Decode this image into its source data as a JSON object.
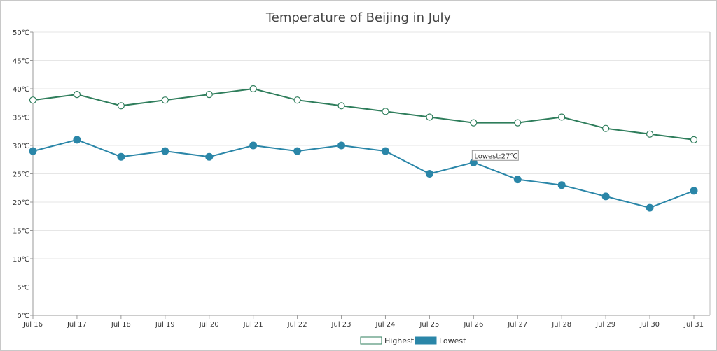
{
  "chart_data": {
    "type": "line",
    "title": "Temperature of Beijing in July",
    "categories": [
      "Jul 16",
      "Jul 17",
      "Jul 18",
      "Jul 19",
      "Jul 20",
      "Jul 21",
      "Jul 22",
      "Jul 23",
      "Jul 24",
      "Jul 25",
      "Jul 26",
      "Jul 27",
      "Jul 28",
      "Jul 29",
      "Jul 30",
      "Jul 31"
    ],
    "y_tick_labels": [
      "0℃",
      "5℃",
      "10℃",
      "15℃",
      "20℃",
      "25℃",
      "30℃",
      "35℃",
      "40℃",
      "45℃",
      "50℃"
    ],
    "ylim": [
      0,
      50
    ],
    "y_unit": "℃",
    "grid": true,
    "legend_position": "bottom-center",
    "series": [
      {
        "name": "Highest",
        "color": "#2e7d5b",
        "marker": "open-circle",
        "values": [
          38,
          39,
          37,
          38,
          39,
          40,
          38,
          37,
          36,
          35,
          34,
          34,
          35,
          33,
          32,
          31
        ]
      },
      {
        "name": "Lowest",
        "color": "#2a86a8",
        "marker": "filled-circle",
        "values": [
          29,
          31,
          28,
          29,
          28,
          30,
          29,
          30,
          29,
          25,
          27,
          24,
          23,
          21,
          19,
          22
        ]
      }
    ],
    "tooltip": {
      "category": "Jul 26",
      "series": "Lowest",
      "text": "Lowest:27℃"
    }
  }
}
